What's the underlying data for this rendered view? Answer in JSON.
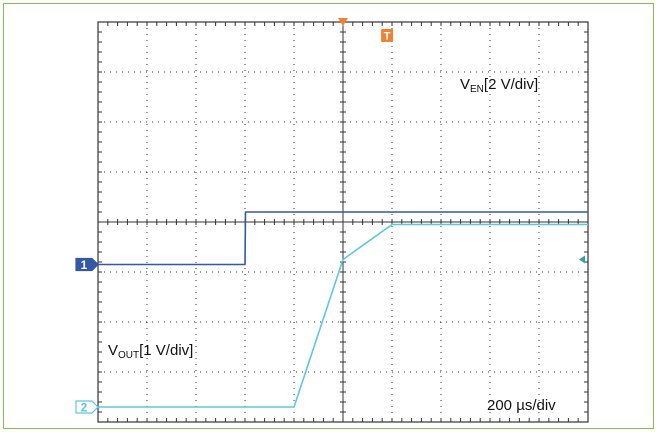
{
  "chart_data": {
    "type": "line",
    "title": "",
    "grid": true,
    "x_divisions": 10,
    "y_divisions": 8,
    "x_axis_scale": "200 µs/div",
    "x": [
      0,
      1,
      2,
      3,
      3.01,
      4,
      5,
      6,
      7,
      8,
      9,
      10
    ],
    "series": [
      {
        "name": "VEN[2 V/div]",
        "color": "#3358a6",
        "channel_marker": "1",
        "y": [
          -0.85,
          -0.85,
          -0.85,
          -0.85,
          0.2,
          0.2,
          0.2,
          0.2,
          0.2,
          0.2,
          0.2,
          0.2
        ]
      },
      {
        "name": "VOUT[1 V/div]",
        "color": "#5ec7dc",
        "channel_marker": "2",
        "y": [
          -3.7,
          -3.7,
          -3.7,
          -3.7,
          -3.7,
          -3.7,
          -0.75,
          -0.05,
          -0.05,
          -0.05,
          -0.05,
          -0.05
        ]
      }
    ],
    "ven_label": {
      "main": "V",
      "sub": "EN",
      "rest": "[2 V/div]"
    },
    "vout_label": {
      "main": "V",
      "sub": "OUT",
      "rest": "[1 V/div]"
    },
    "trigger_marker": "T",
    "colors": {
      "grid": "#333333",
      "frame": "#7fc34a",
      "trigger": "#f0822f"
    }
  }
}
